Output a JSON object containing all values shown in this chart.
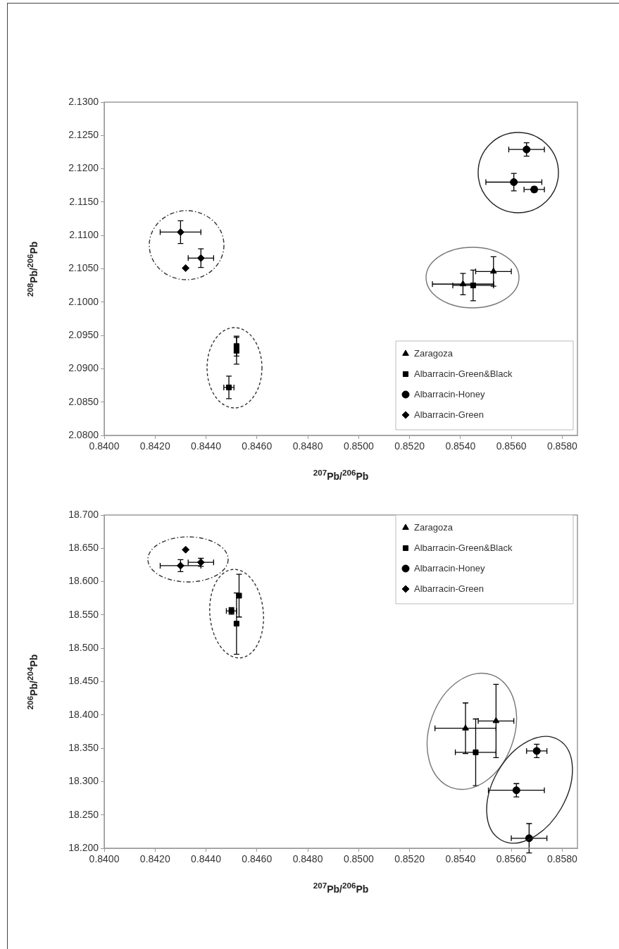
{
  "chart_data": [
    {
      "type": "scatter",
      "xlabel": "$^{207}$Pb/$^{206}$Pb",
      "ylabel": "$^{208}$Pb/$^{206}$Pb",
      "xlim": [
        0.84,
        0.8586
      ],
      "ylim": [
        2.08,
        2.13
      ],
      "xticks": [
        {
          "value": 0.84,
          "label": "0.8400"
        },
        {
          "value": 0.842,
          "label": "0.8420"
        },
        {
          "value": 0.844,
          "label": "0.8440"
        },
        {
          "value": 0.846,
          "label": "0.8460"
        },
        {
          "value": 0.848,
          "label": "0.8480"
        },
        {
          "value": 0.85,
          "label": "0.8500"
        },
        {
          "value": 0.852,
          "label": "0.8520"
        },
        {
          "value": 0.854,
          "label": "0.8540"
        },
        {
          "value": 0.856,
          "label": "0.8560"
        },
        {
          "value": 0.858,
          "label": "0.8580"
        }
      ],
      "yticks": [
        {
          "value": 2.08,
          "label": "2.0800"
        },
        {
          "value": 2.085,
          "label": "2.0850"
        },
        {
          "value": 2.09,
          "label": "2.0900"
        },
        {
          "value": 2.095,
          "label": "2.0950"
        },
        {
          "value": 2.1,
          "label": "2.1000"
        },
        {
          "value": 2.105,
          "label": "2.1050"
        },
        {
          "value": 2.11,
          "label": "2.1100"
        },
        {
          "value": 2.115,
          "label": "2.1150"
        },
        {
          "value": 2.12,
          "label": "2.1200"
        },
        {
          "value": 2.125,
          "label": "2.1250"
        },
        {
          "value": 2.13,
          "label": "2.1300"
        }
      ],
      "grid": false,
      "legend": "bottom right",
      "series": [
        {
          "name": "Zaragoza",
          "color": "#000000",
          "marker": "triangle",
          "x": [
            0.8541,
            0.8553
          ],
          "values": [
            2.1027,
            2.1046
          ],
          "errors": [
            0.0016,
            0.0022
          ],
          "xerrors": [
            0.0012,
            0.0007
          ]
        },
        {
          "name": "Albarracin-Green&Black",
          "color": "#000000",
          "marker": "square",
          "x": [
            0.8452,
            0.8452,
            0.8449,
            0.8545
          ],
          "values": [
            2.0934,
            2.0927,
            2.0872,
            2.1025
          ],
          "errors": [
            0.0015,
            0.002,
            0.0017,
            0.0023
          ],
          "xerrors": [
            null,
            null,
            0.0002,
            0.0008
          ]
        },
        {
          "name": "Albarracin-Honey",
          "color": "#000000",
          "marker": "circle",
          "x": [
            0.8566,
            0.8561,
            0.8569
          ],
          "values": [
            2.1229,
            2.118,
            2.1169
          ],
          "errors": [
            0.001,
            0.0013,
            0.0004
          ],
          "xerrors": [
            0.0007,
            0.0011,
            0.0004
          ]
        },
        {
          "name": "Albarracin-Green",
          "color": "#000000",
          "marker": "diamond",
          "x": [
            0.843,
            0.8438,
            0.8432
          ],
          "values": [
            2.1105,
            2.1066,
            2.1051
          ],
          "errors": [
            0.0017,
            0.0014,
            null
          ],
          "xerrors": [
            0.0008,
            0.0005,
            null
          ]
        }
      ]
    },
    {
      "type": "scatter",
      "xlabel": "$^{207}$Pb/$^{206}$Pb",
      "ylabel": "$^{206}$Pb/$^{204}$Pb",
      "xlim": [
        0.84,
        0.8586
      ],
      "ylim": [
        18.2,
        18.7
      ],
      "xticks": [
        {
          "value": 0.84,
          "label": "0.8400"
        },
        {
          "value": 0.842,
          "label": "0.8420"
        },
        {
          "value": 0.844,
          "label": "0.8440"
        },
        {
          "value": 0.846,
          "label": "0.8460"
        },
        {
          "value": 0.848,
          "label": "0.8480"
        },
        {
          "value": 0.85,
          "label": "0.8500"
        },
        {
          "value": 0.852,
          "label": "0.8520"
        },
        {
          "value": 0.854,
          "label": "0.8540"
        },
        {
          "value": 0.856,
          "label": "0.8560"
        },
        {
          "value": 0.858,
          "label": "0.8580"
        }
      ],
      "yticks": [
        {
          "value": 18.2,
          "label": "18.200"
        },
        {
          "value": 18.25,
          "label": "18.250"
        },
        {
          "value": 18.3,
          "label": "18.300"
        },
        {
          "value": 18.35,
          "label": "18.350"
        },
        {
          "value": 18.4,
          "label": "18.400"
        },
        {
          "value": 18.45,
          "label": "18.450"
        },
        {
          "value": 18.5,
          "label": "18.500"
        },
        {
          "value": 18.55,
          "label": "18.550"
        },
        {
          "value": 18.6,
          "label": "18.600"
        },
        {
          "value": 18.65,
          "label": "18.650"
        },
        {
          "value": 18.7,
          "label": "18.700"
        }
      ],
      "grid": false,
      "legend": "top right",
      "series": [
        {
          "name": "Zaragoza",
          "color": "#000000",
          "marker": "triangle",
          "x": [
            0.8542,
            0.8554
          ],
          "values": [
            18.38,
            18.391
          ],
          "errors": [
            0.038,
            0.055
          ],
          "xerrors": [
            0.0012,
            0.0007
          ]
        },
        {
          "name": "Albarracin-Green&Black",
          "color": "#000000",
          "marker": "square",
          "x": [
            0.8453,
            0.8452,
            0.845,
            0.8546
          ],
          "values": [
            18.579,
            18.537,
            18.556,
            18.344
          ],
          "errors": [
            0.032,
            0.046,
            0.005,
            0.05
          ],
          "xerrors": [
            null,
            null,
            0.0002,
            0.0008
          ]
        },
        {
          "name": "Albarracin-Honey",
          "color": "#000000",
          "marker": "circle",
          "x": [
            0.8567,
            0.8562,
            0.857
          ],
          "values": [
            18.215,
            18.287,
            18.346
          ],
          "errors": [
            0.022,
            0.01,
            0.01
          ],
          "xerrors": [
            0.0007,
            0.0011,
            0.0004
          ]
        },
        {
          "name": "Albarracin-Green",
          "color": "#000000",
          "marker": "diamond",
          "x": [
            0.843,
            0.8438,
            0.8432
          ],
          "values": [
            18.624,
            18.629,
            18.648
          ],
          "errors": [
            0.009,
            0.006,
            null
          ],
          "xerrors": [
            0.0008,
            0.0005,
            null
          ]
        }
      ]
    }
  ]
}
